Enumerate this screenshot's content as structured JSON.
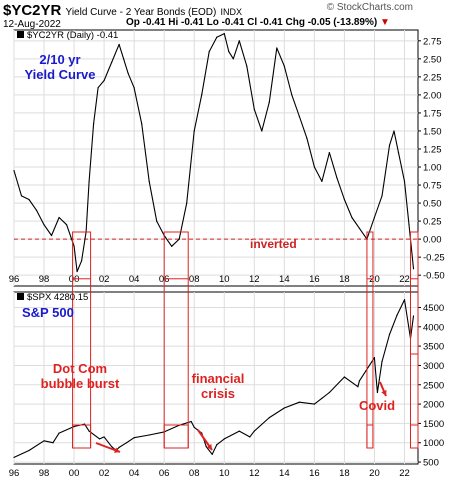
{
  "header": {
    "ticker": "$YC2YR",
    "subtitle": "Yield Curve - 2 Year Bonds (EOD)",
    "exchange": "INDX",
    "date": "12-Aug-2022",
    "ohlc": "Op -0.41  Hi -0.41  Lo -0.41  Cl -0.41  Chg -0.05 (-13.89%)",
    "watermark": "© StockCharts.com",
    "down_arrow_color": "#cc0000"
  },
  "chart_data": [
    {
      "type": "line",
      "legend_label": "$YC2YR (Daily) -0.41",
      "annotation": "2/10 yr\nYield Curve",
      "annotation_color": "#1a1acc",
      "reference_line": {
        "y": 0.0,
        "label": "inverted",
        "color": "#cc2222",
        "style": "dashed"
      },
      "ylim": [
        -0.65,
        2.9
      ],
      "yticks": [
        -0.5,
        -0.25,
        0.0,
        0.25,
        0.5,
        0.75,
        1.0,
        1.25,
        1.5,
        1.75,
        2.0,
        2.25,
        2.5,
        2.75
      ],
      "ytick_labels": [
        "-0.50",
        "-0.25",
        "0.00",
        "0.25",
        "0.50",
        "0.75",
        "1.00",
        "1.25",
        "1.50",
        "1.75",
        "2.00",
        "2.25",
        "2.50",
        "2.75"
      ],
      "grid": true,
      "line_color": "#000000",
      "x": [
        1996.0,
        1996.5,
        1997.0,
        1997.5,
        1998.0,
        1998.5,
        1999.0,
        1999.5,
        2000.0,
        2000.2,
        2000.5,
        2000.8,
        2001.0,
        2001.3,
        2001.6,
        2002.0,
        2002.5,
        2003.0,
        2003.3,
        2003.6,
        2004.0,
        2004.5,
        2005.0,
        2005.5,
        2006.0,
        2006.5,
        2007.0,
        2007.5,
        2008.0,
        2008.5,
        2009.0,
        2009.5,
        2010.0,
        2010.3,
        2010.6,
        2011.0,
        2011.5,
        2012.0,
        2012.5,
        2013.0,
        2013.5,
        2014.0,
        2014.5,
        2015.0,
        2015.5,
        2016.0,
        2016.5,
        2017.0,
        2017.5,
        2018.0,
        2018.5,
        2019.0,
        2019.5,
        2020.0,
        2020.5,
        2021.0,
        2021.3,
        2021.6,
        2022.0,
        2022.3,
        2022.6
      ],
      "values": [
        0.95,
        0.6,
        0.55,
        0.4,
        0.2,
        0.05,
        0.3,
        0.2,
        -0.1,
        -0.45,
        -0.3,
        0.1,
        0.8,
        1.6,
        2.1,
        2.2,
        2.45,
        2.7,
        2.5,
        2.3,
        2.1,
        1.6,
        0.8,
        0.25,
        0.05,
        -0.1,
        0.0,
        0.5,
        1.5,
        2.0,
        2.6,
        2.8,
        2.85,
        2.6,
        2.5,
        2.75,
        2.4,
        1.8,
        1.5,
        1.9,
        2.65,
        2.4,
        2.0,
        1.7,
        1.4,
        1.0,
        0.8,
        1.2,
        0.85,
        0.55,
        0.3,
        0.15,
        0.0,
        0.3,
        0.6,
        1.3,
        1.5,
        1.2,
        0.8,
        0.2,
        -0.41
      ]
    },
    {
      "type": "line",
      "legend_label": "$SPX 4280.15",
      "annotation": "S&P 500",
      "annotation_color": "#1a1acc",
      "ylim": [
        450,
        4900
      ],
      "yticks": [
        500,
        1000,
        1500,
        2000,
        2500,
        3000,
        3500,
        4000,
        4500
      ],
      "ytick_labels": [
        "500",
        "1000",
        "1500",
        "2000",
        "2500",
        "3000",
        "3500",
        "4000",
        "4500"
      ],
      "grid": true,
      "line_color": "#000000",
      "x": [
        1996.0,
        1997.0,
        1998.0,
        1998.6,
        1999.0,
        2000.0,
        2000.7,
        2001.0,
        2001.7,
        2002.0,
        2002.5,
        2002.8,
        2003.0,
        2003.5,
        2004.0,
        2005.0,
        2006.0,
        2007.0,
        2007.8,
        2008.0,
        2008.5,
        2008.8,
        2009.2,
        2009.5,
        2010.0,
        2011.0,
        2011.7,
        2012.0,
        2013.0,
        2014.0,
        2015.0,
        2016.0,
        2016.5,
        2017.0,
        2018.0,
        2018.9,
        2019.0,
        2020.0,
        2020.2,
        2020.5,
        2021.0,
        2021.5,
        2022.0,
        2022.4,
        2022.6
      ],
      "values": [
        620,
        800,
        1050,
        1000,
        1250,
        1420,
        1480,
        1300,
        1100,
        1150,
        900,
        800,
        880,
        1000,
        1130,
        1200,
        1280,
        1450,
        1550,
        1400,
        1250,
        900,
        700,
        950,
        1100,
        1300,
        1150,
        1300,
        1650,
        1900,
        2050,
        2000,
        2150,
        2300,
        2700,
        2450,
        2600,
        3200,
        2300,
        3100,
        3800,
        4300,
        4700,
        3700,
        4280
      ]
    }
  ],
  "xaxis": {
    "labels": [
      "96",
      "98",
      "00",
      "02",
      "04",
      "06",
      "08",
      "10",
      "12",
      "14",
      "16",
      "18",
      "20",
      "22"
    ],
    "label_years": [
      1996,
      1998,
      2000,
      2002,
      2004,
      2006,
      2008,
      2010,
      2012,
      2014,
      2016,
      2018,
      2020,
      2022
    ]
  },
  "highlight_boxes": [
    {
      "x0": 1999.9,
      "x1": 2001.1,
      "color": "#dd2222"
    },
    {
      "x0": 2006.0,
      "x1": 2007.6,
      "color": "#dd2222"
    },
    {
      "x0": 2019.5,
      "x1": 2019.9,
      "color": "#dd2222"
    },
    {
      "x0": 2022.4,
      "x1": 2022.9,
      "color": "#dd2222"
    }
  ],
  "annotations": {
    "dotcom": "Dot Com\nbubble burst",
    "financial": "financial\ncrisis",
    "covid": "Covid",
    "color": "#dd2222"
  }
}
